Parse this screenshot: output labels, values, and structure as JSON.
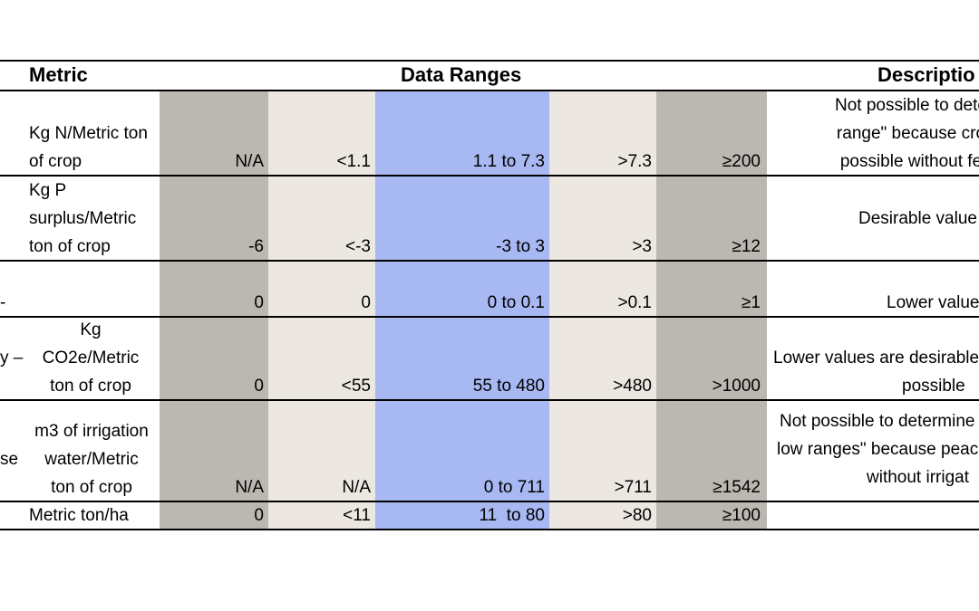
{
  "header": {
    "metric": "Metric",
    "data_ranges": "Data Ranges",
    "description": "Descriptio"
  },
  "rows": [
    {
      "lead": "",
      "unit": [
        "",
        "Kg N/Metric ton",
        "of crop"
      ],
      "values": [
        "N/A",
        "<1.1",
        "1.1 to 7.3",
        ">7.3",
        "≥200"
      ],
      "desc": [
        "Not possible to dete",
        "range\" because cro",
        "possible without fe"
      ]
    },
    {
      "lead": "",
      "unit": [
        "Kg P",
        "surplus/Metric",
        "ton of crop"
      ],
      "values": [
        "-6",
        "<-3",
        "-3 to 3",
        ">3",
        "≥12"
      ],
      "desc": [
        "Desirable value"
      ]
    },
    {
      "lead": "-",
      "unit": [],
      "values": [
        "0",
        "0",
        "0 to 0.1",
        ">0.1",
        "≥1"
      ],
      "desc": [
        "Lower value"
      ]
    },
    {
      "lead": "y –",
      "unit": [
        "Kg",
        "CO2e/Metric",
        "ton of crop"
      ],
      "values": [
        "0",
        "<55",
        "55 to 480",
        ">480",
        ">1000"
      ],
      "desc": [
        "Lower values are desirable",
        "possible"
      ]
    },
    {
      "lead": "se",
      "unit": [
        "m3 of irrigation",
        "water/Metric",
        "ton of crop"
      ],
      "values": [
        "N/A",
        "N/A",
        "0 to 711",
        ">711",
        "≥1542"
      ],
      "desc": [
        "Not possible to determine",
        "low ranges\" because peac",
        "without irrigat"
      ]
    },
    {
      "lead": "",
      "unit": [
        "Metric ton/ha"
      ],
      "values": [
        "0",
        "<11",
        "11  to 80",
        ">80",
        "≥100"
      ],
      "desc": []
    }
  ],
  "colors": {
    "gray_band": "#bbb8b2",
    "beige_band": "#ede7e1",
    "blue_band": "#a7b8f2"
  }
}
